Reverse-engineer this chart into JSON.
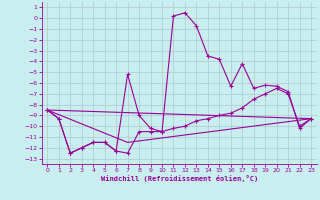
{
  "xlabel": "Windchill (Refroidissement éolien,°C)",
  "bg_color": "#c8eef0",
  "line_color": "#990099",
  "grid_color": "#b0c8cc",
  "xlim": [
    -0.5,
    23.5
  ],
  "ylim": [
    -13.5,
    1.5
  ],
  "xticks": [
    0,
    1,
    2,
    3,
    4,
    5,
    6,
    7,
    8,
    9,
    10,
    11,
    12,
    13,
    14,
    15,
    16,
    17,
    18,
    19,
    20,
    21,
    22,
    23
  ],
  "yticks": [
    1,
    0,
    -1,
    -2,
    -3,
    -4,
    -5,
    -6,
    -7,
    -8,
    -9,
    -10,
    -11,
    -12,
    -13
  ],
  "line1_x": [
    0,
    1,
    2,
    3,
    4,
    5,
    6,
    7,
    8,
    9,
    10,
    11,
    12,
    13,
    14,
    15,
    16,
    17,
    18,
    19,
    20,
    21,
    22,
    23
  ],
  "line1_y": [
    -8.5,
    -9.3,
    -12.5,
    -12.0,
    -11.5,
    -11.5,
    -12.3,
    -5.2,
    -9.0,
    -10.2,
    -10.5,
    0.2,
    0.5,
    -0.7,
    -3.5,
    -3.8,
    -6.3,
    -4.2,
    -6.5,
    -6.2,
    -6.3,
    -6.8,
    -10.2,
    -9.3
  ],
  "line2_x": [
    0,
    1,
    2,
    3,
    4,
    5,
    6,
    7,
    8,
    9,
    10,
    11,
    12,
    13,
    14,
    15,
    16,
    17,
    18,
    19,
    20,
    21,
    22,
    23
  ],
  "line2_y": [
    -8.5,
    -9.3,
    -12.5,
    -12.0,
    -11.5,
    -11.5,
    -12.3,
    -12.5,
    -10.5,
    -10.5,
    -10.5,
    -10.2,
    -10.0,
    -9.5,
    -9.3,
    -9.0,
    -8.8,
    -8.3,
    -7.5,
    -7.0,
    -6.5,
    -7.0,
    -10.0,
    -9.3
  ],
  "line3_x": [
    0,
    7,
    23
  ],
  "line3_y": [
    -8.5,
    -11.5,
    -9.3
  ],
  "line4_x": [
    0,
    23
  ],
  "line4_y": [
    -8.5,
    -9.3
  ]
}
